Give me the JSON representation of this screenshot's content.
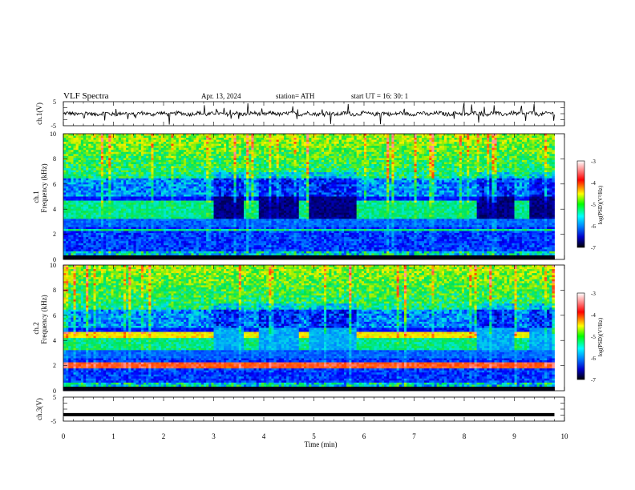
{
  "header": {
    "title": "VLF Spectra",
    "date": "Apr. 13, 2024",
    "station": "station= ATH",
    "start": "start  UT  =    16: 30: 1"
  },
  "chart_data": [
    {
      "type": "line",
      "id": "ch1",
      "ylabel": "ch.1(V)",
      "ylim": [
        -5,
        5
      ],
      "yticks": [
        "5",
        "-5"
      ],
      "x_range": [
        0,
        10
      ],
      "series": [
        {
          "baseline": 0,
          "style": "noisy waveform with spikes"
        }
      ]
    },
    {
      "type": "heatmap",
      "id": "ch1-spectrogram",
      "ylabel": "ch.1\nFrequency  (kHz)",
      "ylim": [
        0,
        10
      ],
      "yticks": [
        "0",
        "2",
        "4",
        "6",
        "8",
        "10"
      ],
      "x_range": [
        0,
        9.8
      ],
      "quiet_intervals_min": [
        [
          3.0,
          3.6
        ],
        [
          3.9,
          4.7
        ],
        [
          4.9,
          5.85
        ],
        [
          8.25,
          9.0
        ],
        [
          9.3,
          9.8
        ]
      ],
      "colorbar": {
        "label": "log(PSD)(V²/Hz)",
        "range": [
          -7,
          -3
        ],
        "ticks": [
          "-3",
          "-4",
          "-5",
          "-6",
          "-7"
        ]
      }
    },
    {
      "type": "heatmap",
      "id": "ch2-spectrogram",
      "ylabel": "ch.2\nFrequency  (kHz)",
      "ylim": [
        0,
        10
      ],
      "yticks": [
        "0",
        "2",
        "4",
        "6",
        "8",
        "10"
      ],
      "x_range": [
        0,
        9.8
      ],
      "quiet_intervals_min": [
        [
          3.0,
          3.6
        ],
        [
          3.9,
          4.7
        ],
        [
          4.9,
          5.85
        ],
        [
          8.25,
          9.0
        ],
        [
          9.3,
          9.8
        ]
      ],
      "colorbar": {
        "label": "log(PSD)(V²/Hz)",
        "range": [
          -7,
          -3
        ],
        "ticks": [
          "-3",
          "-4",
          "-5",
          "-6",
          "-7"
        ]
      }
    },
    {
      "type": "line",
      "id": "ch3",
      "ylabel": "ch.3(V)",
      "ylim": [
        -5,
        5
      ],
      "yticks": [
        "5",
        "-5"
      ],
      "x_range": [
        0,
        10
      ],
      "series": [
        {
          "baseline": -2.3,
          "style": "thick flat line"
        }
      ]
    }
  ],
  "xaxis": {
    "label": "Time  (min)",
    "range": [
      0,
      10
    ],
    "ticks": [
      "0",
      "1",
      "2",
      "3",
      "4",
      "5",
      "6",
      "7",
      "8",
      "9",
      "10"
    ]
  }
}
